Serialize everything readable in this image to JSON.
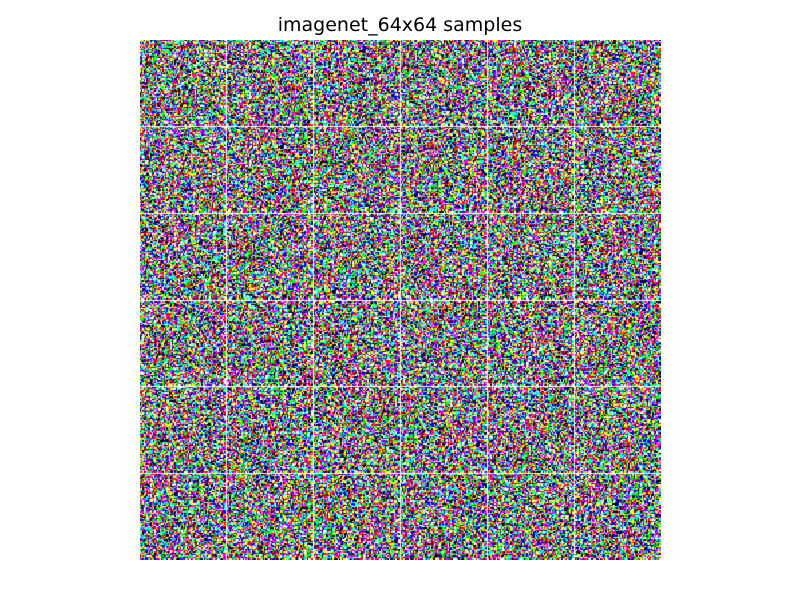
{
  "figure": {
    "title": "imagenet_64x64 samples"
  },
  "grid": {
    "rows": 6,
    "cols": 6,
    "sample_resolution": 64,
    "separator_color": "#ffffff",
    "palette": [
      "#000000",
      "#ff0000",
      "#00ff00",
      "#0000ff",
      "#ffff00",
      "#ff00ff",
      "#00ffff",
      "#ffffff"
    ]
  }
}
